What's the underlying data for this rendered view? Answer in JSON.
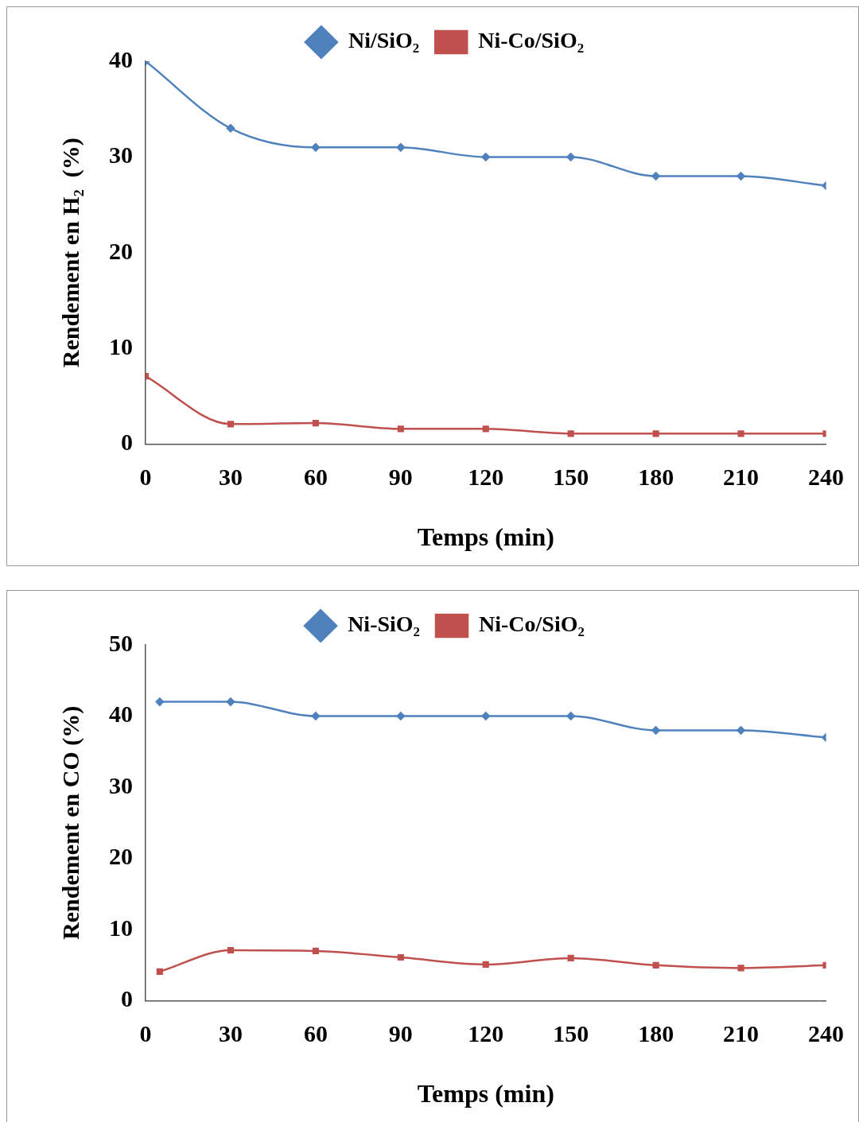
{
  "chart_data": [
    {
      "type": "line",
      "xlabel": "Temps (min)",
      "ylabel": "Rendement en H₂  (%)",
      "x": [
        0,
        30,
        60,
        90,
        120,
        150,
        180,
        210,
        240
      ],
      "series": [
        {
          "name": "Ni/SiO₂",
          "color": "#4f81bd",
          "marker": "diamond",
          "values": [
            40,
            33,
            31,
            31,
            30,
            30,
            28,
            28,
            27
          ]
        },
        {
          "name": "Ni-Co/SiO₂",
          "color": "#c0504d",
          "marker": "square",
          "values": [
            7.1,
            2.1,
            2.2,
            1.6,
            1.6,
            1.1,
            1.1,
            1.1,
            1.1
          ]
        }
      ],
      "xlim": [
        0,
        240
      ],
      "xticks": [
        0,
        30,
        60,
        90,
        120,
        150,
        180,
        210,
        240
      ],
      "ylim": [
        0,
        40
      ],
      "yticks": [
        0,
        10,
        20,
        30,
        40
      ],
      "grid": false,
      "legend": "top"
    },
    {
      "type": "line",
      "xlabel": "Temps (min)",
      "ylabel": "Rendement en CO (%)",
      "x": [
        5,
        30,
        60,
        90,
        120,
        150,
        180,
        210,
        240
      ],
      "series": [
        {
          "name": "Ni-SiO₂",
          "color": "#4f81bd",
          "marker": "diamond",
          "values": [
            42,
            42,
            40,
            40,
            40,
            40,
            38,
            38,
            37
          ]
        },
        {
          "name": "Ni-Co/SiO₂",
          "color": "#c0504d",
          "marker": "square",
          "values": [
            4.1,
            7.1,
            7,
            6.1,
            5.1,
            6,
            5,
            4.6,
            5
          ]
        }
      ],
      "xlim": [
        0,
        240
      ],
      "xticks": [
        0,
        30,
        60,
        90,
        120,
        150,
        180,
        210,
        240
      ],
      "ylim": [
        0,
        50
      ],
      "yticks": [
        0,
        10,
        20,
        30,
        40,
        50
      ],
      "grid": false,
      "legend": "top"
    }
  ]
}
